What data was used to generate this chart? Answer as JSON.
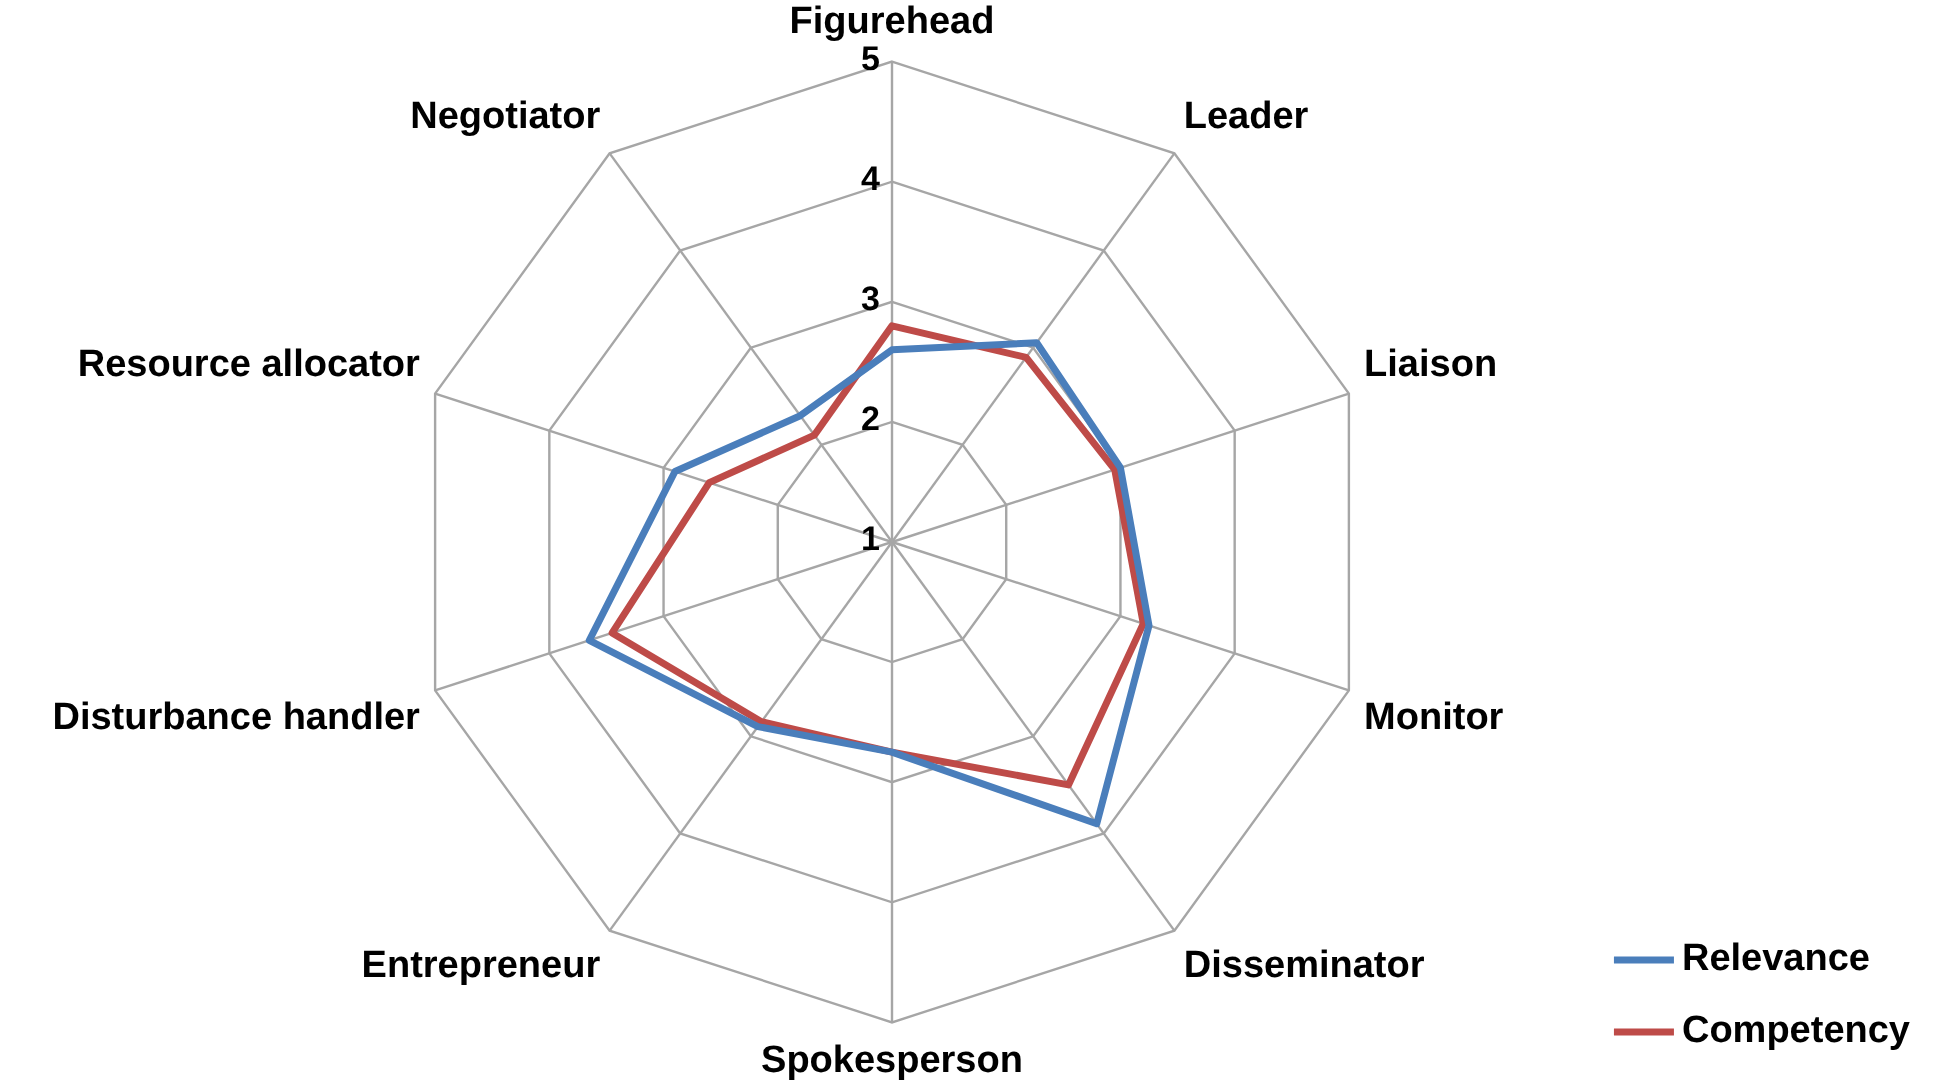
{
  "chart_data": {
    "type": "radar",
    "categories": [
      "Figurehead",
      "Leader",
      "Liaison",
      "Monitor",
      "Disseminator",
      "Spokesperson",
      "Entrepreneur",
      "Disturbance handler",
      "Resource allocator",
      "Negotiator"
    ],
    "series": [
      {
        "name": "Relevance",
        "color": "#4a7ebb",
        "values": [
          2.6,
          3.05,
          3.0,
          3.25,
          3.9,
          2.75,
          2.9,
          3.65,
          2.9,
          2.3
        ]
      },
      {
        "name": "Competency",
        "color": "#be4b48",
        "values": [
          2.8,
          2.9,
          2.95,
          3.2,
          3.5,
          2.75,
          2.85,
          3.45,
          2.6,
          2.1
        ]
      }
    ],
    "ylim": [
      1,
      5
    ],
    "yticks": [
      1,
      2,
      3,
      4,
      5
    ],
    "grid": true,
    "legend": "bottom right",
    "marker": "none",
    "line_style": "solid"
  }
}
